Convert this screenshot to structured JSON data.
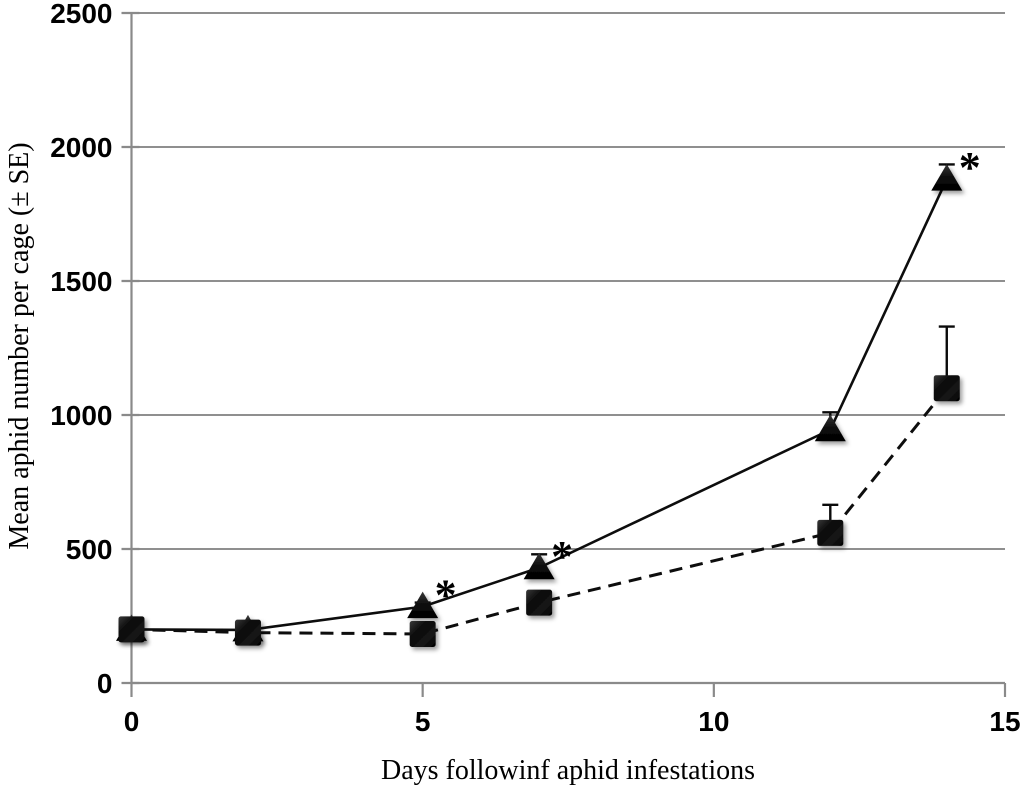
{
  "chart_data": {
    "type": "line",
    "title": "",
    "xlabel": "Days followinf aphid infestations",
    "ylabel": "Mean aphid number per cage (± SE)",
    "x": [
      0,
      2,
      5,
      7,
      12,
      14
    ],
    "series": [
      {
        "name": "triangle-solid-series",
        "marker": "triangle",
        "line": "solid",
        "values": [
          200,
          198,
          285,
          430,
          945,
          1880
        ],
        "se": [
          10,
          10,
          15,
          50,
          65,
          55
        ],
        "significant": [
          false,
          false,
          true,
          true,
          false,
          true
        ]
      },
      {
        "name": "square-dashed-series",
        "marker": "square",
        "line": "dashed",
        "values": [
          200,
          188,
          183,
          300,
          560,
          1100
        ],
        "se": [
          10,
          10,
          10,
          15,
          105,
          230
        ],
        "significant": [
          false,
          false,
          false,
          false,
          false,
          false
        ]
      }
    ],
    "xticks": [
      0,
      5,
      10,
      15
    ],
    "yticks": [
      0,
      500,
      1000,
      1500,
      2000,
      2500
    ],
    "xlim": [
      0,
      15
    ],
    "ylim": [
      0,
      2500
    ],
    "grid": "horizontal",
    "legend": "none",
    "significance_symbol": "*"
  },
  "colors": {
    "grid": "#8f8f8f",
    "axis": "#8a8a8a",
    "line": "#0d0d0d",
    "marker": "#0d0d0d",
    "text": "#000000"
  }
}
